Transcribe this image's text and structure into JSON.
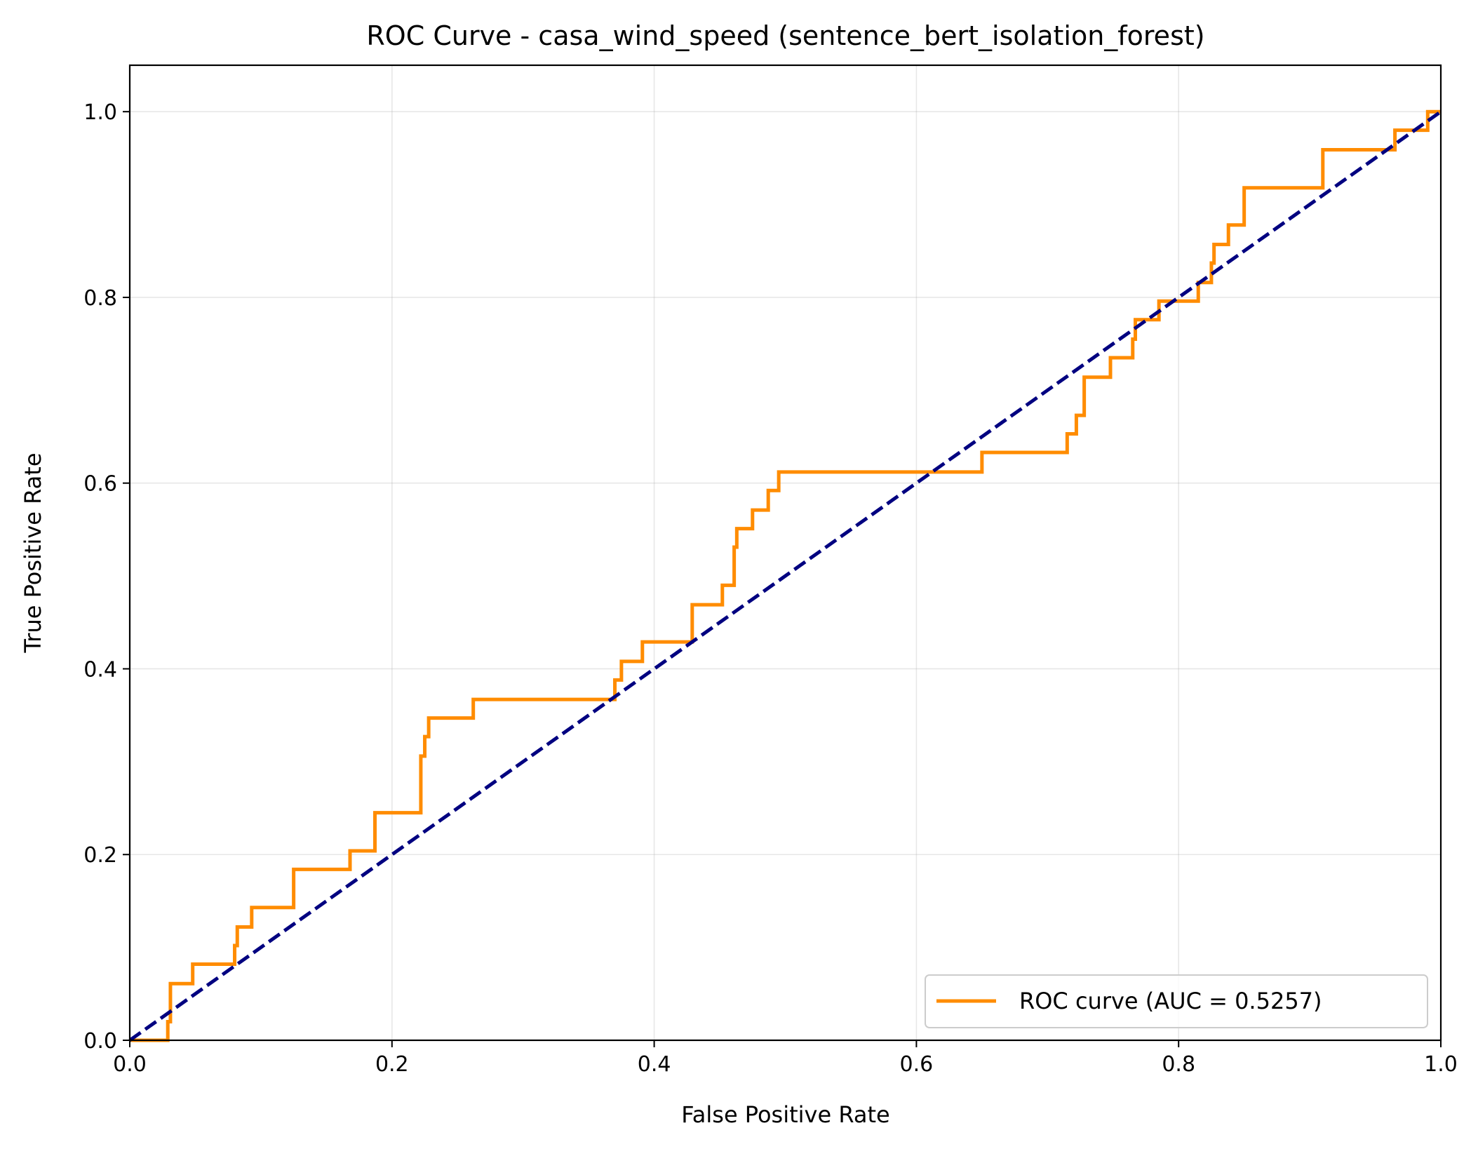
{
  "chart_data": {
    "type": "line",
    "title": "ROC Curve - casa_wind_speed (sentence_bert_isolation_forest)",
    "xlabel": "False Positive Rate",
    "ylabel": "True Positive Rate",
    "xlim": [
      0.0,
      1.0
    ],
    "ylim": [
      0.0,
      1.05
    ],
    "xticks": [
      "0.0",
      "0.2",
      "0.4",
      "0.6",
      "0.8",
      "1.0"
    ],
    "yticks": [
      "0.0",
      "0.2",
      "0.4",
      "0.6",
      "0.8",
      "1.0"
    ],
    "grid": true,
    "legend_position": "lower-right",
    "series": [
      {
        "name": "ROC curve (AUC = 0.5257)",
        "color": "#ff8c00",
        "style": "solid",
        "x": [
          0.0,
          0.029,
          0.029,
          0.031,
          0.031,
          0.048,
          0.048,
          0.08,
          0.08,
          0.082,
          0.082,
          0.093,
          0.093,
          0.125,
          0.125,
          0.168,
          0.168,
          0.187,
          0.187,
          0.222,
          0.222,
          0.225,
          0.225,
          0.228,
          0.228,
          0.262,
          0.262,
          0.37,
          0.37,
          0.375,
          0.375,
          0.391,
          0.391,
          0.429,
          0.429,
          0.452,
          0.452,
          0.461,
          0.461,
          0.463,
          0.463,
          0.475,
          0.475,
          0.487,
          0.487,
          0.495,
          0.495,
          0.65,
          0.65,
          0.715,
          0.715,
          0.722,
          0.722,
          0.728,
          0.728,
          0.748,
          0.748,
          0.765,
          0.765,
          0.767,
          0.767,
          0.785,
          0.785,
          0.815,
          0.815,
          0.825,
          0.825,
          0.827,
          0.827,
          0.838,
          0.838,
          0.85,
          0.85,
          0.91,
          0.91,
          0.965,
          0.965,
          0.99,
          0.99,
          1.0
        ],
        "y": [
          0.0,
          0.0,
          0.02,
          0.02,
          0.061,
          0.061,
          0.082,
          0.082,
          0.102,
          0.102,
          0.122,
          0.122,
          0.143,
          0.143,
          0.184,
          0.184,
          0.204,
          0.204,
          0.245,
          0.245,
          0.306,
          0.306,
          0.327,
          0.327,
          0.347,
          0.347,
          0.367,
          0.367,
          0.388,
          0.388,
          0.408,
          0.408,
          0.429,
          0.429,
          0.469,
          0.469,
          0.49,
          0.49,
          0.531,
          0.531,
          0.551,
          0.551,
          0.571,
          0.571,
          0.592,
          0.592,
          0.612,
          0.612,
          0.633,
          0.633,
          0.653,
          0.653,
          0.673,
          0.673,
          0.714,
          0.714,
          0.735,
          0.735,
          0.755,
          0.755,
          0.776,
          0.776,
          0.796,
          0.796,
          0.816,
          0.816,
          0.837,
          0.837,
          0.857,
          0.857,
          0.878,
          0.878,
          0.918,
          0.918,
          0.959,
          0.959,
          0.98,
          0.98,
          1.0,
          1.0
        ]
      },
      {
        "name": "",
        "color": "#000080",
        "style": "dashed",
        "x": [
          0.0,
          1.0
        ],
        "y": [
          0.0,
          1.0
        ]
      }
    ]
  }
}
